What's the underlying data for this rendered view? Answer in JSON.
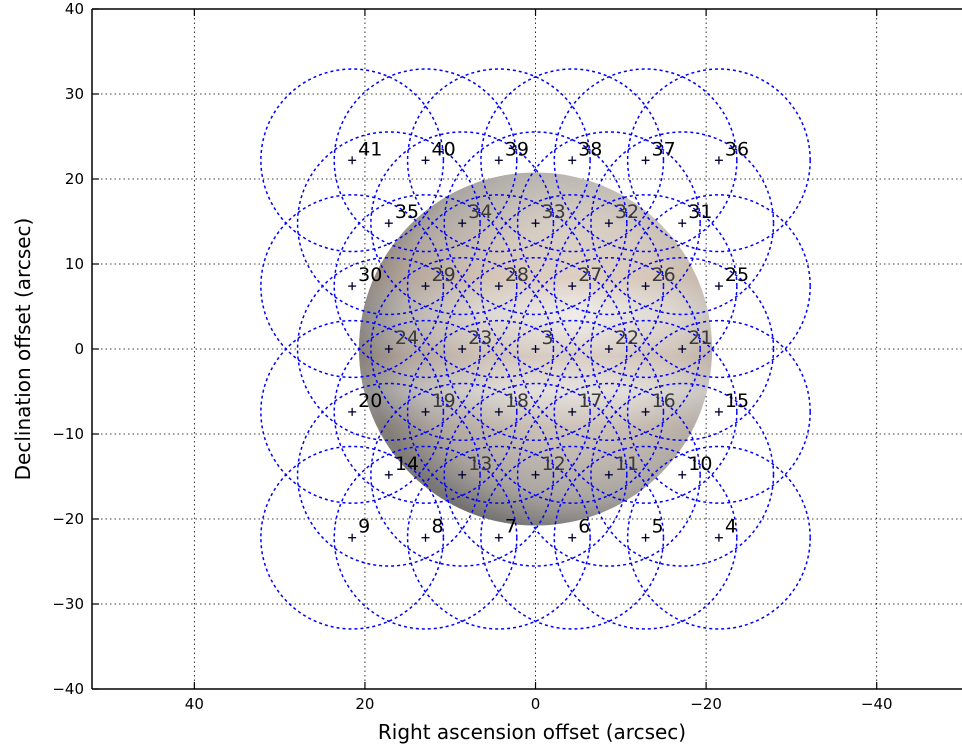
{
  "chart_data": {
    "type": "scatter",
    "title": "",
    "xlabel": "Right ascension offset (arcsec)",
    "ylabel": "Declination offset (arcsec)",
    "xlim": [
      52,
      -50
    ],
    "ylim": [
      -40,
      40
    ],
    "xticks": [
      40,
      20,
      0,
      -20,
      -40
    ],
    "xtick_labels": [
      "40",
      "20",
      "0",
      "−20",
      "−40"
    ],
    "yticks": [
      -40,
      -30,
      -20,
      -10,
      0,
      10,
      20,
      30,
      40
    ],
    "ytick_labels": [
      "−40",
      "−30",
      "−20",
      "−10",
      "0",
      "10",
      "20",
      "30",
      "40"
    ],
    "grid": true,
    "x_inverted": true,
    "background_planet": {
      "center": [
        0,
        0
      ],
      "radius": 20.7
    },
    "beam_radius": 10.7,
    "circle_color": "#0000ff",
    "points": [
      {
        "label": "3",
        "x": 0,
        "y": 0
      },
      {
        "label": "4",
        "x": -21.5,
        "y": -22.2
      },
      {
        "label": "5",
        "x": -12.9,
        "y": -22.2
      },
      {
        "label": "6",
        "x": -4.3,
        "y": -22.2
      },
      {
        "label": "7",
        "x": 4.3,
        "y": -22.2
      },
      {
        "label": "8",
        "x": 12.9,
        "y": -22.2
      },
      {
        "label": "9",
        "x": 21.5,
        "y": -22.2
      },
      {
        "label": "10",
        "x": -17.2,
        "y": -14.8
      },
      {
        "label": "11",
        "x": -8.6,
        "y": -14.8
      },
      {
        "label": "12",
        "x": 0,
        "y": -14.8
      },
      {
        "label": "13",
        "x": 8.6,
        "y": -14.8
      },
      {
        "label": "14",
        "x": 17.2,
        "y": -14.8
      },
      {
        "label": "15",
        "x": -21.5,
        "y": -7.4
      },
      {
        "label": "16",
        "x": -12.9,
        "y": -7.4
      },
      {
        "label": "17",
        "x": -4.3,
        "y": -7.4
      },
      {
        "label": "18",
        "x": 4.3,
        "y": -7.4
      },
      {
        "label": "19",
        "x": 12.9,
        "y": -7.4
      },
      {
        "label": "20",
        "x": 21.5,
        "y": -7.4
      },
      {
        "label": "21",
        "x": -17.2,
        "y": 0
      },
      {
        "label": "22",
        "x": -8.6,
        "y": 0
      },
      {
        "label": "23",
        "x": 8.6,
        "y": 0
      },
      {
        "label": "24",
        "x": 17.2,
        "y": 0
      },
      {
        "label": "25",
        "x": -21.5,
        "y": 7.4
      },
      {
        "label": "26",
        "x": -12.9,
        "y": 7.4
      },
      {
        "label": "27",
        "x": -4.3,
        "y": 7.4
      },
      {
        "label": "28",
        "x": 4.3,
        "y": 7.4
      },
      {
        "label": "29",
        "x": 12.9,
        "y": 7.4
      },
      {
        "label": "30",
        "x": 21.5,
        "y": 7.4
      },
      {
        "label": "31",
        "x": -17.2,
        "y": 14.8
      },
      {
        "label": "32",
        "x": -8.6,
        "y": 14.8
      },
      {
        "label": "33",
        "x": 0,
        "y": 14.8
      },
      {
        "label": "34",
        "x": 8.6,
        "y": 14.8
      },
      {
        "label": "35",
        "x": 17.2,
        "y": 14.8
      },
      {
        "label": "36",
        "x": -21.5,
        "y": 22.2
      },
      {
        "label": "37",
        "x": -12.9,
        "y": 22.2
      },
      {
        "label": "38",
        "x": -4.3,
        "y": 22.2
      },
      {
        "label": "39",
        "x": 4.3,
        "y": 22.2
      },
      {
        "label": "40",
        "x": 12.9,
        "y": 22.2
      },
      {
        "label": "41",
        "x": 21.5,
        "y": 22.2
      }
    ]
  }
}
